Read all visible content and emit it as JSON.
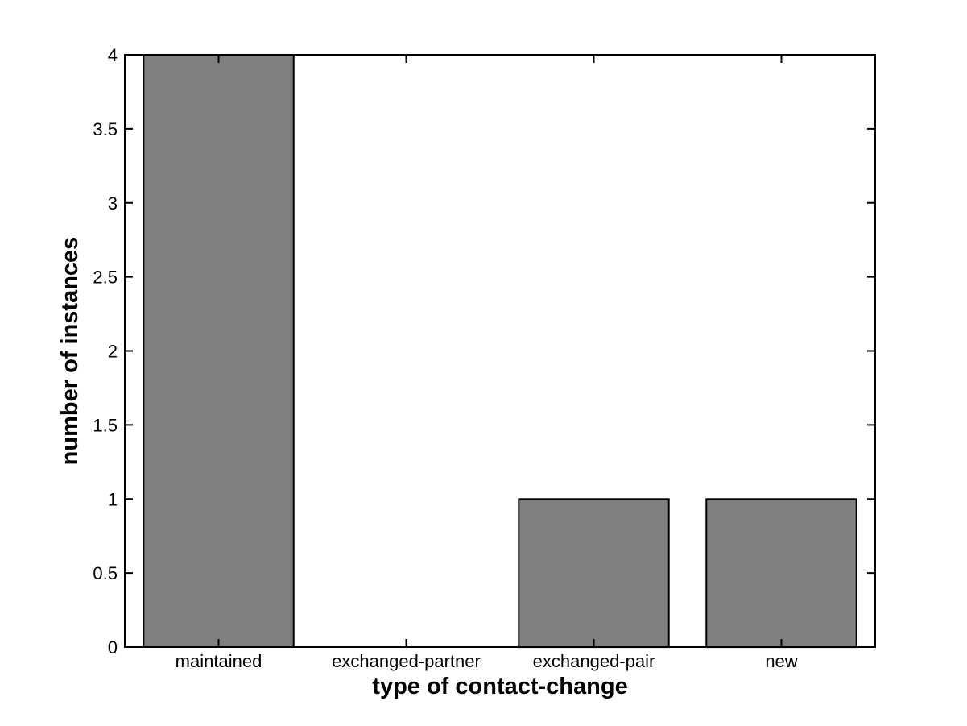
{
  "figure": {
    "background_color": "#ffffff"
  },
  "chart_data": {
    "type": "bar",
    "title": "",
    "xlabel": "type of contact-change",
    "ylabel": "number of instances",
    "categories": [
      "maintained",
      "exchanged-partner",
      "exchanged-pair",
      "new"
    ],
    "values": [
      4,
      0,
      1,
      1
    ],
    "ylim": [
      0,
      4
    ],
    "ytick_values": [
      0,
      0.5,
      1,
      1.5,
      2,
      2.5,
      3,
      3.5,
      4
    ],
    "ytick_labels": [
      "0",
      "0.5",
      "1",
      "1.5",
      "2",
      "2.5",
      "3",
      "3.5",
      "4"
    ],
    "bar_width_fraction": 0.8,
    "bar_color": "#808080",
    "bar_edge_color": "#000000",
    "axis_color": "#000000",
    "grid": false,
    "legend": null,
    "box": true,
    "tick_direction": "in"
  }
}
